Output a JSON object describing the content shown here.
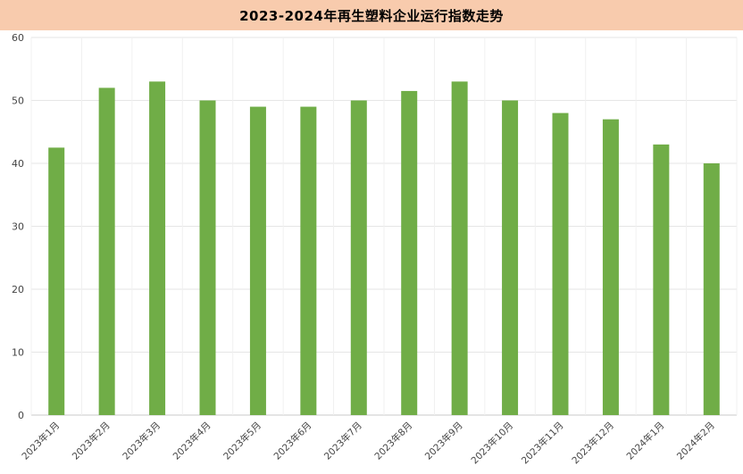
{
  "title": "2023-2024年再生塑料企业运行指数走势",
  "colors": {
    "title_background": "#f8cbad",
    "bar": "#70ad47",
    "grid": "#e6e6e6"
  },
  "chart_data": {
    "type": "bar",
    "title": "2023-2024年再生塑料企业运行指数走势",
    "xlabel": "",
    "ylabel": "",
    "categories": [
      "2023年1月",
      "2023年2月",
      "2023年3月",
      "2023年4月",
      "2023年5月",
      "2023年6月",
      "2023年7月",
      "2023年8月",
      "2023年9月",
      "2023年10月",
      "2023年11月",
      "2023年12月",
      "2024年1月",
      "2024年2月"
    ],
    "values": [
      42.5,
      52,
      53,
      50,
      49,
      49,
      50,
      51.5,
      53,
      50,
      48,
      47,
      43,
      40
    ],
    "ylim": [
      0,
      60
    ],
    "yticks": [
      0,
      10,
      20,
      30,
      40,
      50,
      60
    ],
    "grid": true,
    "legend": "none"
  }
}
